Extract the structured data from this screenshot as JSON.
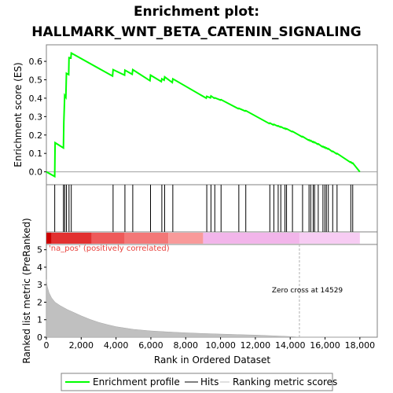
{
  "chart_data": {
    "type": "line",
    "title_line1": "Enrichment plot:",
    "title_line2": "HALLMARK_WNT_BETA_CATENIN_SIGNALING",
    "xlabel": "Rank in Ordered Dataset",
    "ylabel_top": "Enrichment score (ES)",
    "ylabel_bottom": "Ranked list metric (PreRanked)",
    "x_range": [
      0,
      19000
    ],
    "es_ylim": [
      -0.07,
      0.69
    ],
    "metric_ylim": [
      0,
      5.3
    ],
    "x_ticks": [
      0,
      2000,
      4000,
      6000,
      8000,
      10000,
      12000,
      14000,
      16000,
      18000
    ],
    "x_tick_labels": [
      "0",
      "2,000",
      "4,000",
      "6,000",
      "8,000",
      "10,000",
      "12,000",
      "14,000",
      "16,000",
      "18,000"
    ],
    "es_ticks": [
      0.0,
      0.1,
      0.2,
      0.3,
      0.4,
      0.5,
      0.6
    ],
    "es_tick_labels": [
      "0.0",
      "0.1",
      "0.2",
      "0.3",
      "0.4",
      "0.5",
      "0.6"
    ],
    "metric_ticks": [
      0,
      1,
      2,
      3,
      4,
      5
    ],
    "metric_tick_labels": [
      "0",
      "1",
      "2",
      "3",
      "4",
      "5"
    ],
    "enrichment_profile": {
      "x": [
        0,
        480,
        500,
        980,
        1000,
        1050,
        1120,
        1150,
        1280,
        1300,
        1410,
        1430,
        3800,
        3830,
        4490,
        4510,
        4930,
        4960,
        5950,
        5980,
        6600,
        6630,
        6760,
        6790,
        7230,
        7260,
        9180,
        9210,
        9420,
        9450,
        9640,
        9670,
        10000,
        10030,
        11020,
        11050,
        11420,
        11450,
        12800,
        12830,
        13030,
        13060,
        13280,
        13310,
        13430,
        13460,
        13670,
        13700,
        13760,
        13790,
        14100,
        14130,
        14680,
        14710,
        15050,
        15080,
        15150,
        15180,
        15290,
        15320,
        15370,
        15400,
        15580,
        15610,
        15850,
        15880,
        15960,
        15990,
        16050,
        16080,
        16160,
        16190,
        16410,
        16440,
        16660,
        16690,
        17450,
        17480,
        17560,
        17590,
        18000
      ],
      "es": [
        0.0,
        -0.025,
        0.158,
        0.13,
        0.27,
        0.415,
        0.405,
        0.535,
        0.528,
        0.62,
        0.618,
        0.645,
        0.52,
        0.555,
        0.525,
        0.552,
        0.53,
        0.555,
        0.495,
        0.525,
        0.49,
        0.505,
        0.498,
        0.516,
        0.485,
        0.505,
        0.4,
        0.41,
        0.402,
        0.412,
        0.4,
        0.402,
        0.39,
        0.392,
        0.343,
        0.345,
        0.33,
        0.332,
        0.262,
        0.265,
        0.255,
        0.258,
        0.248,
        0.25,
        0.243,
        0.245,
        0.235,
        0.237,
        0.232,
        0.234,
        0.218,
        0.22,
        0.19,
        0.192,
        0.172,
        0.174,
        0.168,
        0.17,
        0.162,
        0.164,
        0.159,
        0.161,
        0.15,
        0.152,
        0.136,
        0.138,
        0.132,
        0.134,
        0.128,
        0.13,
        0.124,
        0.126,
        0.11,
        0.112,
        0.098,
        0.1,
        0.052,
        0.054,
        0.046,
        0.048,
        0.0
      ]
    },
    "hits": [
      480,
      980,
      1050,
      1150,
      1300,
      1430,
      3830,
      4510,
      4960,
      5980,
      6630,
      6790,
      7260,
      9210,
      9450,
      9670,
      10030,
      11050,
      11450,
      12830,
      13060,
      13310,
      13460,
      13700,
      13790,
      14130,
      14710,
      15080,
      15180,
      15320,
      15400,
      15610,
      15880,
      15990,
      16080,
      16190,
      16440,
      16690,
      17480,
      17590
    ],
    "heatmap_regions": [
      {
        "from": 0,
        "to": 300,
        "color": "#cc0000"
      },
      {
        "from": 300,
        "to": 2600,
        "color": "#e23030"
      },
      {
        "from": 2600,
        "to": 4500,
        "color": "#ee5a5a"
      },
      {
        "from": 4500,
        "to": 7000,
        "color": "#f37878"
      },
      {
        "from": 7000,
        "to": 9000,
        "color": "#f89a9a"
      },
      {
        "from": 9000,
        "to": 14529,
        "color": "#f2b5ea"
      },
      {
        "from": 14529,
        "to": 18000,
        "color": "#f7ccf3"
      }
    ],
    "metric_profile": {
      "x": [
        0,
        50,
        150,
        300,
        500,
        800,
        1200,
        1600,
        2000,
        2500,
        3000,
        3500,
        4000,
        5000,
        6000,
        7000,
        8000,
        9000,
        10000,
        11000,
        12000,
        13000,
        14000,
        14529,
        15000,
        16000,
        17000,
        18000
      ],
      "y": [
        3.3,
        2.9,
        2.55,
        2.25,
        2.0,
        1.8,
        1.58,
        1.4,
        1.22,
        1.02,
        0.85,
        0.72,
        0.6,
        0.45,
        0.36,
        0.3,
        0.25,
        0.21,
        0.18,
        0.15,
        0.12,
        0.08,
        0.04,
        0.0,
        0.0,
        0.0,
        0.0,
        0.0
      ]
    },
    "zero_cross": 14529,
    "zero_cross_label": "Zero cross at 14529",
    "pos_label": "'na_pos' (positively correlated)",
    "colors": {
      "es_line": "#00ff00",
      "hit_line": "#000000",
      "metric_fill": "#c0c0c0",
      "zero_line": "#b0b0b0",
      "pos_label": "#e8413c"
    },
    "legend": [
      {
        "label": "Enrichment profile",
        "symbol": "green-line"
      },
      {
        "label": "Hits",
        "symbol": "black-line"
      },
      {
        "label": "Ranking metric scores",
        "symbol": "gray-line"
      }
    ]
  }
}
